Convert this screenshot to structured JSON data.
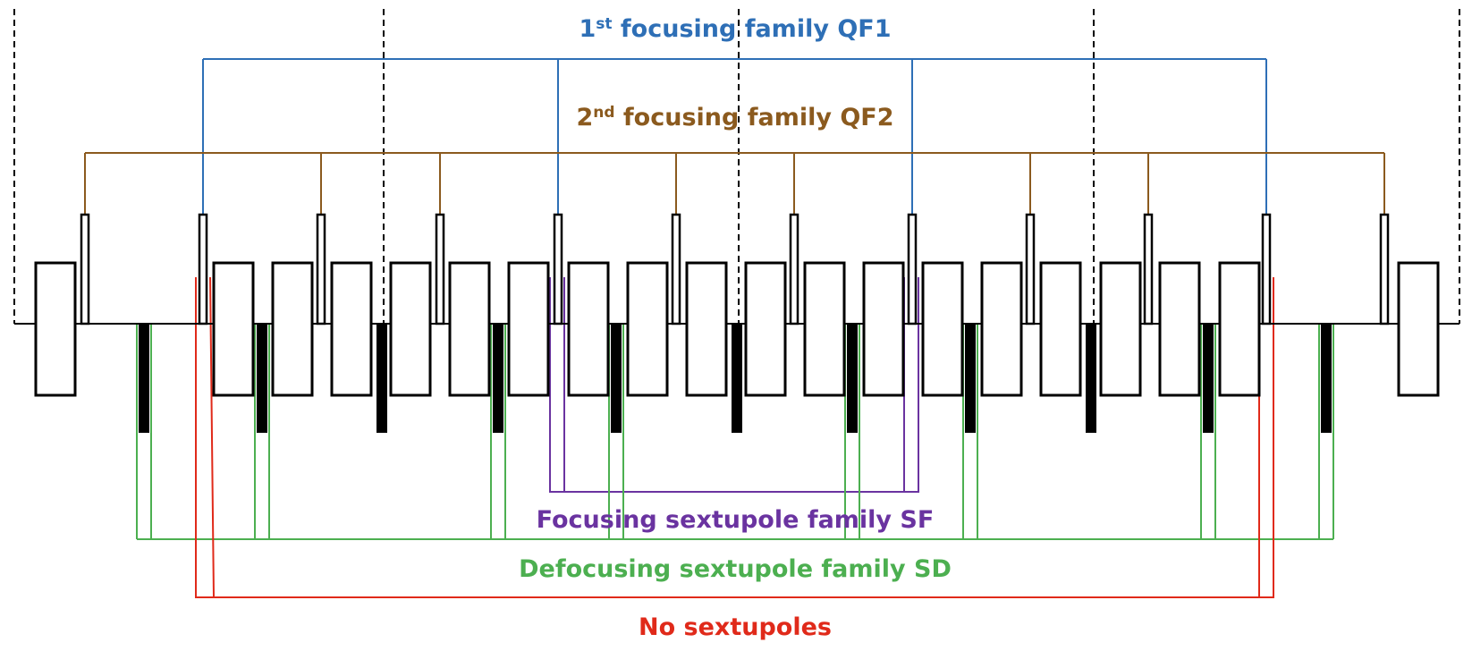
{
  "labels": {
    "qf1": {
      "prefix": "1",
      "sup": "st",
      "rest": " focusing family QF1",
      "color": "#2e6fb6"
    },
    "qf2": {
      "prefix": "2",
      "sup": "nd",
      "rest": " focusing family QF2",
      "color": "#8b5a1e"
    },
    "sf": {
      "text": "Focusing sextupole family SF",
      "color": "#6a33a0"
    },
    "sd": {
      "text": "Defocusing sextupole family SD",
      "color": "#4caf50"
    },
    "none": {
      "text": "No sextupoles",
      "color": "#e02a1a"
    }
  },
  "colors": {
    "lattice": "#000000"
  }
}
